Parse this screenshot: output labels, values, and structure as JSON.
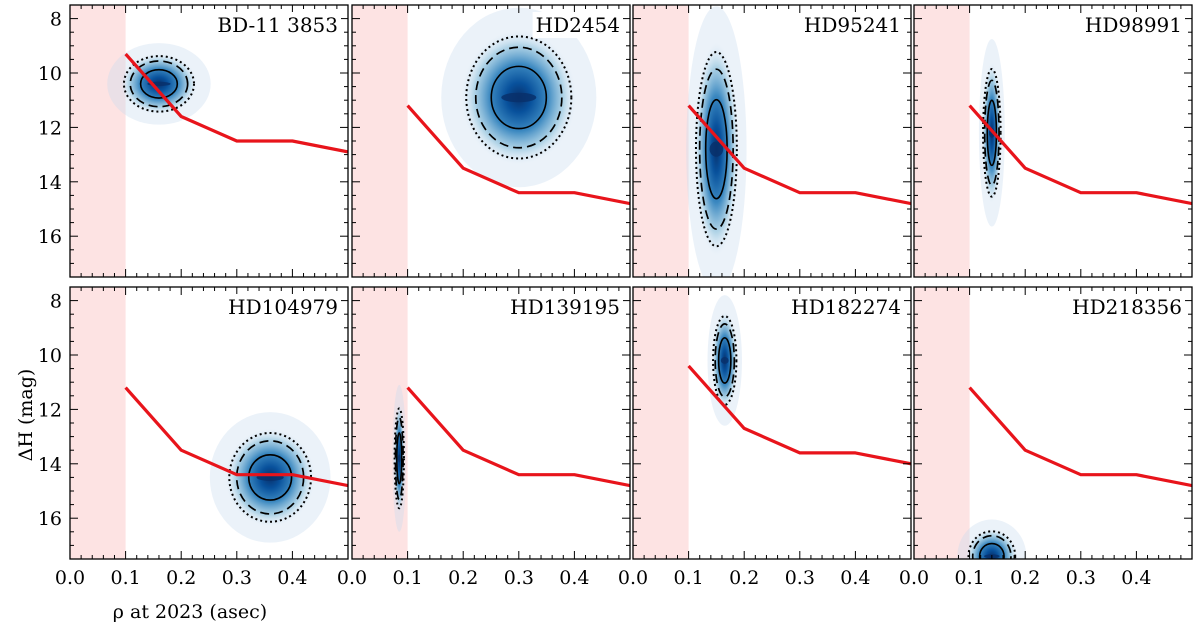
{
  "figure": {
    "xlabel": "ρ at 2023 (asec)",
    "ylabel": "ΔH (mag)"
  },
  "colors": {
    "excluded_region": "#fde3e3",
    "limit_curve": "#e8141b",
    "density_dark": "#08306b",
    "density_mid": "#2b7bba",
    "density_light": "#c6dbef",
    "contour": "#000000"
  },
  "chart_data": [
    {
      "type": "scatter",
      "title": "BD-11 3853",
      "xlim": [
        0,
        0.5
      ],
      "ylim": [
        17.5,
        7.5
      ],
      "xticks": [
        "0.0",
        "0.1",
        "0.2",
        "0.3",
        "0.4"
      ],
      "yticks": [
        "8",
        "10",
        "12",
        "14",
        "16"
      ],
      "excluded_region_x": [
        0,
        0.1
      ],
      "limit_curve": {
        "x": [
          0.1,
          0.2,
          0.3,
          0.4,
          0.5
        ],
        "y": [
          9.3,
          11.6,
          12.5,
          12.5,
          12.9
        ]
      },
      "posterior": {
        "center_x": 0.16,
        "center_y": 10.4,
        "spread_x": 0.06,
        "spread_y": 1.0
      }
    },
    {
      "type": "scatter",
      "title": "HD2454",
      "xlim": [
        0,
        0.5
      ],
      "ylim": [
        17.5,
        7.5
      ],
      "xticks": [
        "0.0",
        "0.1",
        "0.2",
        "0.3",
        "0.4"
      ],
      "yticks": [
        "8",
        "10",
        "12",
        "14",
        "16"
      ],
      "excluded_region_x": [
        0,
        0.1
      ],
      "limit_curve": {
        "x": [
          0.1,
          0.2,
          0.3,
          0.4,
          0.5
        ],
        "y": [
          11.2,
          13.5,
          14.4,
          14.4,
          14.8
        ]
      },
      "posterior": {
        "center_x": 0.3,
        "center_y": 10.9,
        "spread_x": 0.09,
        "spread_y": 2.2
      }
    },
    {
      "type": "scatter",
      "title": "HD95241",
      "xlim": [
        0,
        0.5
      ],
      "ylim": [
        17.5,
        7.5
      ],
      "xticks": [
        "0.0",
        "0.1",
        "0.2",
        "0.3",
        "0.4"
      ],
      "yticks": [
        "8",
        "10",
        "12",
        "14",
        "16"
      ],
      "excluded_region_x": [
        0,
        0.1
      ],
      "limit_curve": {
        "x": [
          0.1,
          0.2,
          0.3,
          0.4,
          0.5
        ],
        "y": [
          11.2,
          13.5,
          14.4,
          14.4,
          14.8
        ]
      },
      "posterior": {
        "center_x": 0.15,
        "center_y": 12.8,
        "spread_x": 0.035,
        "spread_y": 3.5
      }
    },
    {
      "type": "scatter",
      "title": "HD98991",
      "xlim": [
        0,
        0.5
      ],
      "ylim": [
        17.5,
        7.5
      ],
      "xticks": [
        "0.0",
        "0.1",
        "0.2",
        "0.3",
        "0.4"
      ],
      "yticks": [
        "8",
        "10",
        "12",
        "14",
        "16"
      ],
      "excluded_region_x": [
        0,
        0.1
      ],
      "limit_curve": {
        "x": [
          0.1,
          0.2,
          0.3,
          0.4,
          0.5
        ],
        "y": [
          11.2,
          13.5,
          14.4,
          14.4,
          14.8
        ]
      },
      "posterior": {
        "center_x": 0.14,
        "center_y": 12.2,
        "spread_x": 0.015,
        "spread_y": 2.3
      }
    },
    {
      "type": "scatter",
      "title": "HD104979",
      "xlim": [
        0,
        0.5
      ],
      "ylim": [
        17.5,
        7.5
      ],
      "xticks": [
        "0.0",
        "0.1",
        "0.2",
        "0.3",
        "0.4"
      ],
      "yticks": [
        "8",
        "10",
        "12",
        "14",
        "16"
      ],
      "excluded_region_x": [
        0,
        0.1
      ],
      "limit_curve": {
        "x": [
          0.1,
          0.2,
          0.3,
          0.4,
          0.5
        ],
        "y": [
          11.2,
          13.5,
          14.4,
          14.4,
          14.8
        ]
      },
      "posterior": {
        "center_x": 0.36,
        "center_y": 14.5,
        "spread_x": 0.07,
        "spread_y": 1.6
      }
    },
    {
      "type": "scatter",
      "title": "HD139195",
      "xlim": [
        0,
        0.5
      ],
      "ylim": [
        17.5,
        7.5
      ],
      "xticks": [
        "0.0",
        "0.1",
        "0.2",
        "0.3",
        "0.4"
      ],
      "yticks": [
        "8",
        "10",
        "12",
        "14",
        "16"
      ],
      "excluded_region_x": [
        0,
        0.1
      ],
      "limit_curve": {
        "x": [
          0.1,
          0.2,
          0.3,
          0.4,
          0.5
        ],
        "y": [
          11.2,
          13.5,
          14.4,
          14.4,
          14.8
        ]
      },
      "posterior": {
        "center_x": 0.085,
        "center_y": 13.8,
        "spread_x": 0.008,
        "spread_y": 1.8
      }
    },
    {
      "type": "scatter",
      "title": "HD182274",
      "xlim": [
        0,
        0.5
      ],
      "ylim": [
        17.5,
        7.5
      ],
      "xticks": [
        "0.0",
        "0.1",
        "0.2",
        "0.3",
        "0.4"
      ],
      "yticks": [
        "8",
        "10",
        "12",
        "14",
        "16"
      ],
      "excluded_region_x": [
        0,
        0.1
      ],
      "limit_curve": {
        "x": [
          0.1,
          0.2,
          0.3,
          0.4,
          0.5
        ],
        "y": [
          10.4,
          12.7,
          13.6,
          13.6,
          14.0
        ]
      },
      "posterior": {
        "center_x": 0.165,
        "center_y": 10.2,
        "spread_x": 0.02,
        "spread_y": 1.6
      }
    },
    {
      "type": "scatter",
      "title": "HD218356",
      "xlim": [
        0,
        0.5
      ],
      "ylim": [
        17.5,
        7.5
      ],
      "xticks": [
        "0.0",
        "0.1",
        "0.2",
        "0.3",
        "0.4"
      ],
      "yticks": [
        "8",
        "10",
        "12",
        "14",
        "16"
      ],
      "excluded_region_x": [
        0,
        0.1
      ],
      "limit_curve": {
        "x": [
          0.1,
          0.2,
          0.3,
          0.4,
          0.5
        ],
        "y": [
          11.2,
          13.5,
          14.4,
          14.4,
          14.8
        ]
      },
      "posterior": {
        "center_x": 0.14,
        "center_y": 17.4,
        "spread_x": 0.04,
        "spread_y": 0.9
      }
    }
  ]
}
